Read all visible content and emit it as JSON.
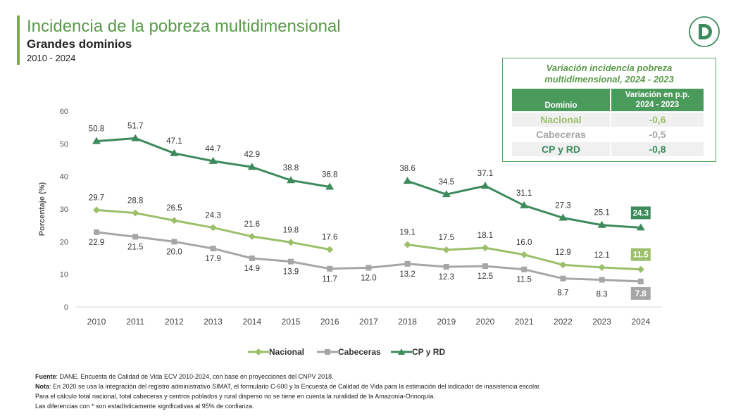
{
  "header": {
    "title": "Incidencia de la pobreza multidimensional",
    "subtitle": "Grandes dominios",
    "period": "2010 - 2024"
  },
  "colors": {
    "nacional": "#9cbf6a",
    "cabeceras": "#a6a6a6",
    "cpyrd": "#3d8a5c",
    "title": "#5a9a4a"
  },
  "variation_table": {
    "title_line1": "Variación incidencia pobreza",
    "title_line2": "multidimensional, 2024 - 2023",
    "col1": "Dominio",
    "col2_line1": "Variación en p.p.",
    "col2_line2": "2024 - 2023",
    "rows": [
      {
        "domain": "Nacional",
        "value": "-0,6"
      },
      {
        "domain": "Cabeceras",
        "value": "-0,5"
      },
      {
        "domain": "CP y RD",
        "value": "-0,8"
      }
    ]
  },
  "chart_data": {
    "type": "line",
    "title": "Incidencia de la pobreza multidimensional",
    "ylabel": "Porcentaje (%)",
    "xlabel": "",
    "ylim": [
      0,
      60
    ],
    "yticks": [
      0,
      10,
      20,
      30,
      40,
      50,
      60
    ],
    "categories": [
      "2010",
      "2011",
      "2012",
      "2013",
      "2014",
      "2015",
      "2016",
      "2017",
      "2018",
      "2019",
      "2020",
      "2021",
      "2022",
      "2023",
      "2024"
    ],
    "series": [
      {
        "name": "Nacional",
        "marker": "diamond",
        "values": [
          29.7,
          28.8,
          26.5,
          24.3,
          21.6,
          19.8,
          17.6,
          null,
          19.1,
          17.5,
          18.1,
          16.0,
          12.9,
          12.1,
          11.5
        ],
        "labels": [
          "29.7",
          "28.8",
          "26.5",
          "24.3",
          "21.6",
          "19.8",
          "17.6",
          "",
          "19.1",
          "17.5",
          "18.1",
          "16.0",
          "12.9",
          "12.1",
          "11.5"
        ]
      },
      {
        "name": "Cabeceras",
        "marker": "square",
        "values": [
          22.9,
          21.5,
          20.0,
          17.9,
          14.9,
          13.9,
          11.7,
          12.0,
          13.2,
          12.3,
          12.5,
          11.5,
          8.7,
          8.3,
          7.8
        ],
        "labels": [
          "22.9",
          "21.5",
          "20.0",
          "17.9",
          "14.9",
          "13.9",
          "11.7",
          "12.0",
          "13.2",
          "12.3",
          "12.5",
          "11.5",
          "8.7",
          "8.3",
          "7.8"
        ]
      },
      {
        "name": "CP y RD",
        "marker": "triangle",
        "values": [
          50.8,
          51.7,
          47.1,
          44.7,
          42.9,
          38.8,
          36.8,
          null,
          38.6,
          34.5,
          37.1,
          31.1,
          27.3,
          25.1,
          24.3
        ],
        "labels": [
          "50.8",
          "51.7",
          "47.1",
          "44.7",
          "42.9",
          "38.8",
          "36.8",
          "",
          "38.6",
          "34.5",
          "37.1",
          "31.1",
          "27.3",
          "25.1",
          "24.3"
        ]
      }
    ],
    "legend": [
      "Nacional",
      "Cabeceras",
      "CP y RD"
    ],
    "legend_position": "bottom"
  },
  "footnotes": {
    "fuente_label": "Fuente",
    "fuente_text": ": DANE. Encuesta de Calidad de Vida ECV 2010-2024, con base en proyecciones del CNPV 2018.",
    "nota_label": "Nota",
    "nota_text": ": En 2020 se usa la integración del registro administrativo SIMAT, el formulario C-600 y la Encuesta de Calidad de Vida para la estimación del indicador de inasistencia escolar.",
    "line3": "Para el cálculo total nacional, total cabeceras y centros poblados y rural disperso no se tiene en cuenta la ruralidad de la Amazonía-Orinoquía.",
    "line4": "Las diferencias con * son estadísticamente significativas al 95% de confianza."
  }
}
